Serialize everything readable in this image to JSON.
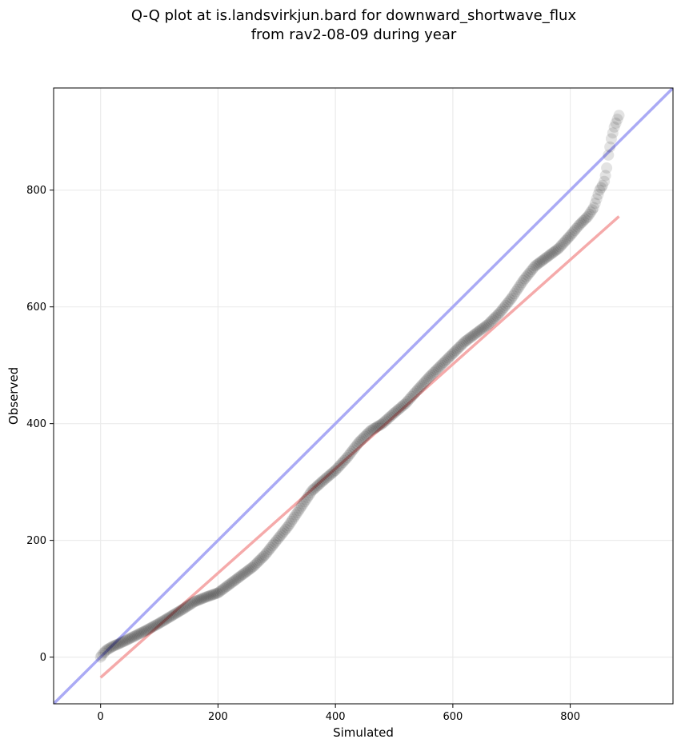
{
  "chart_data": {
    "type": "scatter",
    "title": [
      "Q-Q plot at is.landsvirkjun.bard for downward_shortwave_flux",
      "from rav2-08-09 during year"
    ],
    "xlabel": "Simulated",
    "ylabel": "Observed",
    "xlim": [
      -80,
      975
    ],
    "ylim": [
      -80,
      975
    ],
    "xticks": [
      0,
      200,
      400,
      600,
      800
    ],
    "yticks": [
      0,
      200,
      400,
      600,
      800
    ],
    "grid": true,
    "colors": {
      "points": "#000000",
      "identity_line": "#aaaaf5",
      "fit_line": "#f5aaaa",
      "grid": "#ebebeb"
    },
    "identity_line": [
      [
        -80,
        -80
      ],
      [
        975,
        975
      ]
    ],
    "fit_line": [
      [
        0,
        -35
      ],
      [
        883,
        755
      ]
    ],
    "quantiles": {
      "x": [
        0,
        2,
        5,
        10,
        20,
        40,
        60,
        80,
        100,
        120,
        140,
        160,
        180,
        200,
        220,
        240,
        260,
        280,
        300,
        320,
        340,
        360,
        380,
        400,
        420,
        440,
        460,
        480,
        500,
        520,
        540,
        560,
        580,
        600,
        620,
        640,
        660,
        680,
        700,
        720,
        740,
        760,
        780,
        800,
        815,
        830,
        840,
        845,
        850,
        855,
        858,
        860,
        862,
        865,
        870,
        875,
        883
      ],
      "y": [
        0,
        3,
        7,
        12,
        18,
        27,
        37,
        47,
        58,
        70,
        82,
        95,
        103,
        110,
        125,
        140,
        155,
        175,
        200,
        225,
        255,
        285,
        303,
        320,
        342,
        368,
        388,
        400,
        418,
        435,
        458,
        480,
        500,
        520,
        540,
        555,
        570,
        590,
        615,
        645,
        670,
        685,
        700,
        722,
        740,
        755,
        770,
        785,
        800,
        808,
        815,
        825,
        838,
        860,
        888,
        908,
        928
      ]
    }
  }
}
